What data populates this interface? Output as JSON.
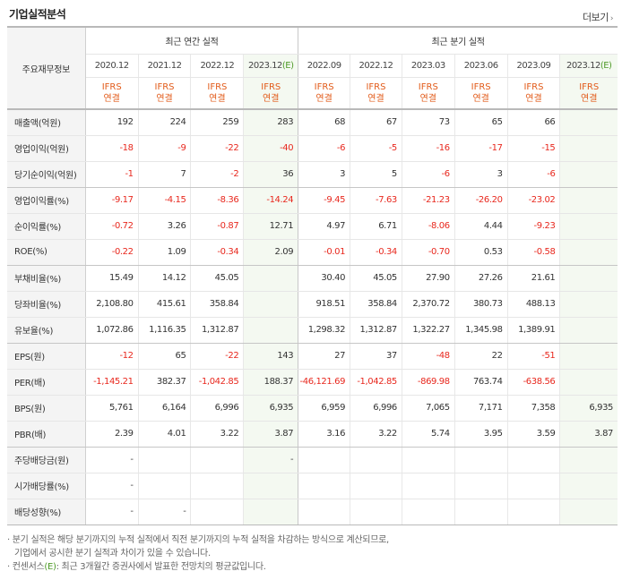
{
  "header": {
    "title": "기업실적분석",
    "more_label": "더보기",
    "more_arrow": "›"
  },
  "table": {
    "row_header_label": "주요재무정보",
    "annual_group": "최근 연간 실적",
    "quarterly_group": "최근 분기 실적",
    "ifrs_top": "IFRS",
    "ifrs_bottom": "연결",
    "periods": [
      {
        "label": "2020.12"
      },
      {
        "label": "2021.12"
      },
      {
        "label": "2022.12"
      },
      {
        "label": "2023.12",
        "suffix": "(E)"
      },
      {
        "label": "2022.09"
      },
      {
        "label": "2022.12"
      },
      {
        "label": "2023.03"
      },
      {
        "label": "2023.06"
      },
      {
        "label": "2023.09"
      },
      {
        "label": "2023.12",
        "suffix": "(E)"
      }
    ],
    "rows": [
      {
        "label": "매출액(억원)",
        "values": [
          "192",
          "224",
          "259",
          "283",
          "68",
          "67",
          "73",
          "65",
          "66",
          ""
        ]
      },
      {
        "label": "영업이익(억원)",
        "values": [
          "-18",
          "-9",
          "-22",
          "-40",
          "-6",
          "-5",
          "-16",
          "-17",
          "-15",
          ""
        ]
      },
      {
        "label": "당기순이익(억원)",
        "values": [
          "-1",
          "7",
          "-2",
          "36",
          "3",
          "5",
          "-6",
          "3",
          "-6",
          ""
        ],
        "group_end": true
      },
      {
        "label": "영업이익률(%)",
        "values": [
          "-9.17",
          "-4.15",
          "-8.36",
          "-14.24",
          "-9.45",
          "-7.63",
          "-21.23",
          "-26.20",
          "-23.02",
          ""
        ]
      },
      {
        "label": "순이익률(%)",
        "values": [
          "-0.72",
          "3.26",
          "-0.87",
          "12.71",
          "4.97",
          "6.71",
          "-8.06",
          "4.44",
          "-9.23",
          ""
        ]
      },
      {
        "label": "ROE(%)",
        "values": [
          "-0.22",
          "1.09",
          "-0.34",
          "2.09",
          "-0.01",
          "-0.34",
          "-0.70",
          "0.53",
          "-0.58",
          ""
        ],
        "group_end": true
      },
      {
        "label": "부채비율(%)",
        "values": [
          "15.49",
          "14.12",
          "45.05",
          "",
          "30.40",
          "45.05",
          "27.90",
          "27.26",
          "21.61",
          ""
        ]
      },
      {
        "label": "당좌비율(%)",
        "values": [
          "2,108.80",
          "415.61",
          "358.84",
          "",
          "918.51",
          "358.84",
          "2,370.72",
          "380.73",
          "488.13",
          ""
        ]
      },
      {
        "label": "유보율(%)",
        "values": [
          "1,072.86",
          "1,116.35",
          "1,312.87",
          "",
          "1,298.32",
          "1,312.87",
          "1,322.27",
          "1,345.98",
          "1,389.91",
          ""
        ],
        "group_end": true
      },
      {
        "label": "EPS(원)",
        "values": [
          "-12",
          "65",
          "-22",
          "143",
          "27",
          "37",
          "-48",
          "22",
          "-51",
          ""
        ]
      },
      {
        "label": "PER(배)",
        "values": [
          "-1,145.21",
          "382.37",
          "-1,042.85",
          "188.37",
          "-46,121.69",
          "-1,042.85",
          "-869.98",
          "763.74",
          "-638.56",
          ""
        ]
      },
      {
        "label": "BPS(원)",
        "values": [
          "5,761",
          "6,164",
          "6,996",
          "6,935",
          "6,959",
          "6,996",
          "7,065",
          "7,171",
          "7,358",
          "6,935"
        ]
      },
      {
        "label": "PBR(배)",
        "values": [
          "2.39",
          "4.01",
          "3.22",
          "3.87",
          "3.16",
          "3.22",
          "5.74",
          "3.95",
          "3.59",
          "3.87"
        ],
        "group_end": true
      },
      {
        "label": "주당배당금(원)",
        "values": [
          "-",
          "",
          "",
          "-",
          "",
          "",
          "",
          "",
          "",
          ""
        ]
      },
      {
        "label": "시가배당률(%)",
        "values": [
          "-",
          "",
          "",
          "",
          "",
          "",
          "",
          "",
          "",
          ""
        ]
      },
      {
        "label": "배당성향(%)",
        "values": [
          "-",
          "-",
          "",
          "",
          "",
          "",
          "",
          "",
          "",
          ""
        ]
      }
    ]
  },
  "notes": {
    "line1": "분기 실적은 해당 분기까지의 누적 실적에서 직전 분기까지의 누적 실적을 차감하는 방식으로 계산되므로,",
    "line2": "기업에서 공시한 분기 실적과 차이가 있을 수 있습니다.",
    "line3_prefix": "컨센서스",
    "line3_tag": "(E)",
    "line3_suffix": ": 최근 3개월간 증권사에서 발표한 전망치의 평균값입니다."
  }
}
